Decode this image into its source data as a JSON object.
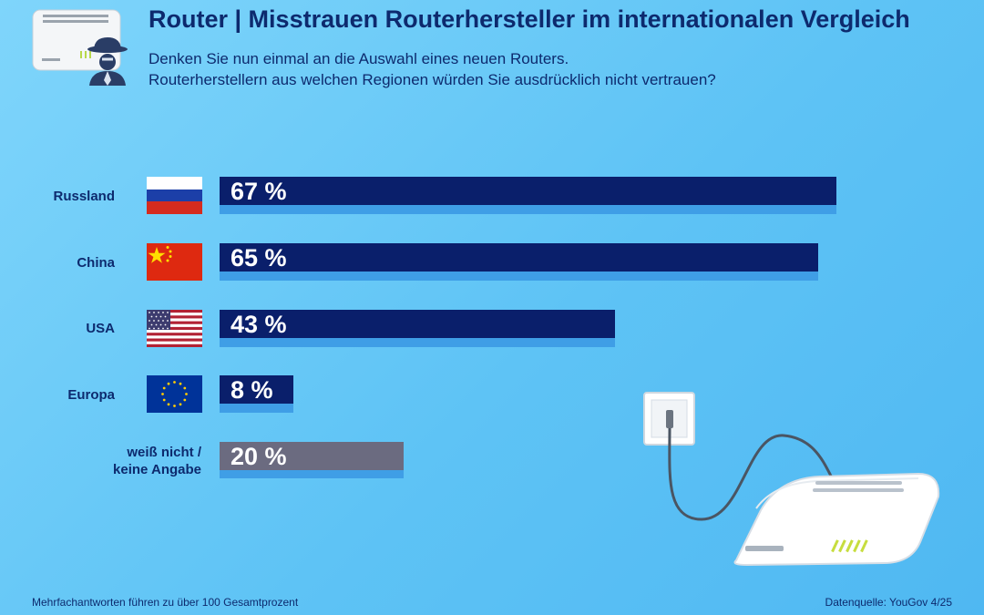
{
  "header": {
    "title": "Router | Misstrauen Routerhersteller im internationalen Vergleich",
    "subtitle_line1": "Denken Sie nun einmal an die Auswahl eines neuen Routers.",
    "subtitle_line2": "Routerherstellern aus welchen Regionen würden Sie ausdrücklich nicht vertrauen?"
  },
  "chart_data": {
    "type": "bar",
    "orientation": "horizontal",
    "categories": [
      "Russland",
      "China",
      "USA",
      "Europa",
      "weiß nicht / keine Angabe"
    ],
    "category_lines": [
      [
        "Russland"
      ],
      [
        "China"
      ],
      [
        "USA"
      ],
      [
        "Europa"
      ],
      [
        "weiß nicht /",
        "keine Angabe"
      ]
    ],
    "values": [
      67,
      65,
      43,
      8,
      20
    ],
    "value_labels": [
      "67 %",
      "65 %",
      "43 %",
      "8 %",
      "20 %"
    ],
    "unit": "%",
    "xlim": [
      0,
      100
    ],
    "grid": false,
    "legend": "none",
    "bar_colors": [
      "#0a1f6b",
      "#0a1f6b",
      "#0a1f6b",
      "#0a1f6b",
      "#6b6b80"
    ],
    "shadow_colors": [
      "#3f9ee6",
      "#3f9ee6",
      "#3f9ee6",
      "#3f9ee6",
      "#3f9ee6"
    ]
  },
  "footer": {
    "note": "Mehrfachantworten führen zu über 100 Gesamtprozent",
    "source": "Datenquelle: YouGov 4/25"
  },
  "colors": {
    "background": "#5ec3f5",
    "text": "#0d2a6e",
    "bar": "#0a1f6b",
    "bar_neutral": "#6b6b80"
  },
  "icons": [
    "router-spy-icon",
    "flag-russia-icon",
    "flag-china-icon",
    "flag-usa-icon",
    "flag-eu-icon",
    "router-illustration-icon",
    "wall-socket-icon"
  ]
}
